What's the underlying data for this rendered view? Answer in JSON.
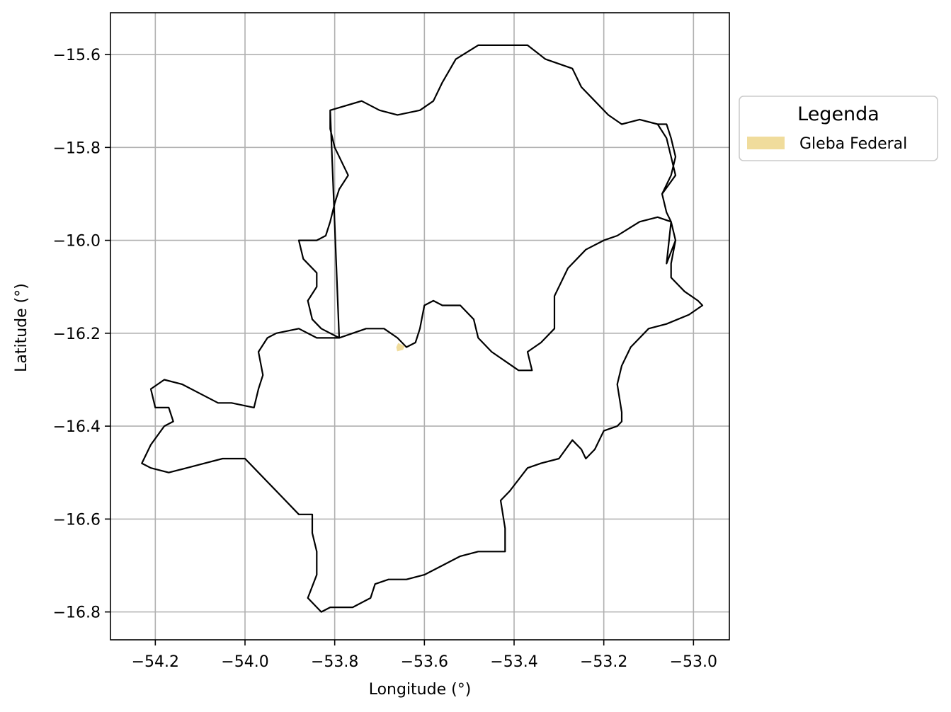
{
  "chart_data": {
    "type": "map",
    "xlabel": "Longitude (°)",
    "ylabel": "Latitude (°)",
    "xlim": [
      -54.3,
      -52.92
    ],
    "ylim": [
      -16.86,
      -15.51
    ],
    "xticks": [
      -54.2,
      -54.0,
      -53.8,
      -53.6,
      -53.4,
      -53.2,
      -53.0
    ],
    "yticks": [
      -15.6,
      -15.8,
      -16.0,
      -16.2,
      -16.4,
      -16.6,
      -16.8
    ],
    "xtick_labels": [
      "−54.2",
      "−54.0",
      "−53.8",
      "−53.6",
      "−53.4",
      "−53.2",
      "−53.0"
    ],
    "ytick_labels": [
      "−15.6",
      "−15.8",
      "−16.0",
      "−16.2",
      "−16.4",
      "−16.6",
      "−16.8"
    ],
    "grid": true,
    "legend": {
      "title": "Legenda",
      "placement": "outside-right-top",
      "entries": [
        {
          "label": "Gleba Federal",
          "color": "#f0dc9c"
        }
      ]
    },
    "layers": [
      {
        "kind": "boundary",
        "stroke": "#000000",
        "coordinates": [
          [
            -53.81,
            -15.72
          ],
          [
            -53.74,
            -15.7
          ],
          [
            -53.7,
            -15.72
          ],
          [
            -53.66,
            -15.73
          ],
          [
            -53.61,
            -15.72
          ],
          [
            -53.58,
            -15.7
          ],
          [
            -53.56,
            -15.66
          ],
          [
            -53.53,
            -15.61
          ],
          [
            -53.48,
            -15.58
          ],
          [
            -53.42,
            -15.58
          ],
          [
            -53.37,
            -15.58
          ],
          [
            -53.33,
            -15.61
          ],
          [
            -53.3,
            -15.62
          ],
          [
            -53.27,
            -15.63
          ],
          [
            -53.25,
            -15.67
          ],
          [
            -53.22,
            -15.7
          ],
          [
            -53.19,
            -15.73
          ],
          [
            -53.16,
            -15.75
          ],
          [
            -53.12,
            -15.74
          ],
          [
            -53.08,
            -15.75
          ],
          [
            -53.06,
            -15.78
          ],
          [
            -53.05,
            -15.82
          ],
          [
            -53.04,
            -15.86
          ],
          [
            -53.07,
            -15.9
          ],
          [
            -53.06,
            -15.94
          ],
          [
            -53.05,
            -15.96
          ],
          [
            -53.04,
            -16.0
          ],
          [
            -53.05,
            -16.05
          ],
          [
            -53.05,
            -16.08
          ],
          [
            -53.02,
            -16.11
          ],
          [
            -52.99,
            -16.13
          ],
          [
            -52.98,
            -16.14
          ],
          [
            -53.01,
            -16.16
          ],
          [
            -53.06,
            -16.18
          ],
          [
            -53.1,
            -16.19
          ],
          [
            -53.14,
            -16.23
          ],
          [
            -53.16,
            -16.27
          ],
          [
            -53.17,
            -16.31
          ],
          [
            -53.16,
            -16.37
          ],
          [
            -53.16,
            -16.39
          ],
          [
            -53.17,
            -16.4
          ],
          [
            -53.2,
            -16.41
          ],
          [
            -53.22,
            -16.45
          ],
          [
            -53.24,
            -16.47
          ],
          [
            -53.25,
            -16.45
          ],
          [
            -53.27,
            -16.43
          ],
          [
            -53.3,
            -16.47
          ],
          [
            -53.34,
            -16.48
          ],
          [
            -53.37,
            -16.49
          ],
          [
            -53.41,
            -16.54
          ],
          [
            -53.43,
            -16.56
          ],
          [
            -53.42,
            -16.62
          ],
          [
            -53.42,
            -16.67
          ],
          [
            -53.45,
            -16.67
          ],
          [
            -53.48,
            -16.67
          ],
          [
            -53.52,
            -16.68
          ],
          [
            -53.56,
            -16.7
          ],
          [
            -53.6,
            -16.72
          ],
          [
            -53.64,
            -16.73
          ],
          [
            -53.68,
            -16.73
          ],
          [
            -53.71,
            -16.74
          ],
          [
            -53.72,
            -16.77
          ],
          [
            -53.76,
            -16.79
          ],
          [
            -53.81,
            -16.79
          ],
          [
            -53.83,
            -16.8
          ],
          [
            -53.86,
            -16.77
          ],
          [
            -53.84,
            -16.72
          ],
          [
            -53.84,
            -16.67
          ],
          [
            -53.85,
            -16.63
          ],
          [
            -53.85,
            -16.59
          ],
          [
            -53.88,
            -16.59
          ],
          [
            -53.92,
            -16.55
          ],
          [
            -53.97,
            -16.5
          ],
          [
            -54.0,
            -16.47
          ],
          [
            -54.05,
            -16.47
          ],
          [
            -54.09,
            -16.48
          ],
          [
            -54.13,
            -16.49
          ],
          [
            -54.17,
            -16.5
          ],
          [
            -54.21,
            -16.49
          ],
          [
            -54.23,
            -16.48
          ],
          [
            -54.21,
            -16.44
          ],
          [
            -54.18,
            -16.4
          ],
          [
            -54.16,
            -16.39
          ],
          [
            -54.17,
            -16.36
          ],
          [
            -54.2,
            -16.36
          ],
          [
            -54.21,
            -16.32
          ],
          [
            -54.18,
            -16.3
          ],
          [
            -54.14,
            -16.31
          ],
          [
            -54.1,
            -16.33
          ],
          [
            -54.06,
            -16.35
          ],
          [
            -54.03,
            -16.35
          ],
          [
            -53.98,
            -16.36
          ],
          [
            -53.97,
            -16.32
          ],
          [
            -53.96,
            -16.29
          ],
          [
            -53.97,
            -16.24
          ],
          [
            -53.95,
            -16.21
          ],
          [
            -53.93,
            -16.2
          ],
          [
            -53.88,
            -16.19
          ],
          [
            -53.84,
            -16.21
          ],
          [
            -53.79,
            -16.21
          ],
          [
            -53.73,
            -16.19
          ],
          [
            -53.69,
            -16.19
          ],
          [
            -53.66,
            -16.21
          ],
          [
            -53.64,
            -16.23
          ],
          [
            -53.62,
            -16.22
          ],
          [
            -53.61,
            -16.19
          ],
          [
            -53.6,
            -16.14
          ],
          [
            -53.58,
            -16.13
          ],
          [
            -53.56,
            -16.14
          ],
          [
            -53.52,
            -16.14
          ],
          [
            -53.49,
            -16.17
          ],
          [
            -53.48,
            -16.21
          ],
          [
            -53.45,
            -16.24
          ],
          [
            -53.42,
            -16.26
          ],
          [
            -53.39,
            -16.28
          ],
          [
            -53.36,
            -16.28
          ],
          [
            -53.37,
            -16.24
          ],
          [
            -53.34,
            -16.22
          ],
          [
            -53.31,
            -16.19
          ],
          [
            -53.31,
            -16.12
          ],
          [
            -53.28,
            -16.06
          ],
          [
            -53.24,
            -16.02
          ],
          [
            -53.2,
            -16.0
          ],
          [
            -53.17,
            -15.99
          ],
          [
            -53.12,
            -15.96
          ],
          [
            -53.08,
            -15.95
          ],
          [
            -53.05,
            -15.96
          ],
          [
            -53.04,
            -16.0
          ],
          [
            -53.06,
            -16.05
          ],
          [
            -53.05,
            -15.96
          ],
          [
            -53.06,
            -15.94
          ],
          [
            -53.07,
            -15.9
          ],
          [
            -53.05,
            -15.86
          ],
          [
            -53.04,
            -15.82
          ],
          [
            -53.05,
            -15.78
          ],
          [
            -53.06,
            -15.75
          ],
          [
            -53.08,
            -15.75
          ],
          [
            -53.12,
            -15.74
          ],
          [
            -53.16,
            -15.75
          ],
          [
            -53.19,
            -15.73
          ],
          [
            -53.22,
            -15.7
          ],
          [
            -53.25,
            -15.67
          ],
          [
            -53.27,
            -15.63
          ],
          [
            -53.3,
            -15.62
          ],
          [
            -53.33,
            -15.61
          ],
          [
            -53.37,
            -15.58
          ],
          [
            -53.42,
            -15.58
          ],
          [
            -53.48,
            -15.58
          ],
          [
            -53.53,
            -15.61
          ],
          [
            -53.56,
            -15.66
          ],
          [
            -53.58,
            -15.7
          ],
          [
            -53.61,
            -15.72
          ],
          [
            -53.66,
            -15.73
          ],
          [
            -53.7,
            -15.72
          ],
          [
            -53.74,
            -15.7
          ],
          [
            -53.81,
            -15.72
          ],
          [
            -53.81,
            -15.76
          ],
          [
            -53.8,
            -15.8
          ],
          [
            -53.77,
            -15.86
          ],
          [
            -53.79,
            -15.89
          ],
          [
            -53.8,
            -15.92
          ],
          [
            -53.81,
            -15.96
          ],
          [
            -53.82,
            -15.99
          ],
          [
            -53.84,
            -16.0
          ],
          [
            -53.88,
            -16.0
          ],
          [
            -53.87,
            -16.04
          ],
          [
            -53.84,
            -16.07
          ],
          [
            -53.84,
            -16.1
          ],
          [
            -53.86,
            -16.13
          ],
          [
            -53.85,
            -16.17
          ],
          [
            -53.83,
            -16.19
          ],
          [
            -53.79,
            -16.21
          ]
        ]
      },
      {
        "kind": "polygon",
        "label": "Gleba Federal",
        "fill": "#f0dc9c",
        "coordinates": [
          [
            -53.658,
            -16.222
          ],
          [
            -53.645,
            -16.228
          ],
          [
            -53.648,
            -16.235
          ],
          [
            -53.66,
            -16.238
          ],
          [
            -53.662,
            -16.23
          ]
        ]
      }
    ]
  }
}
